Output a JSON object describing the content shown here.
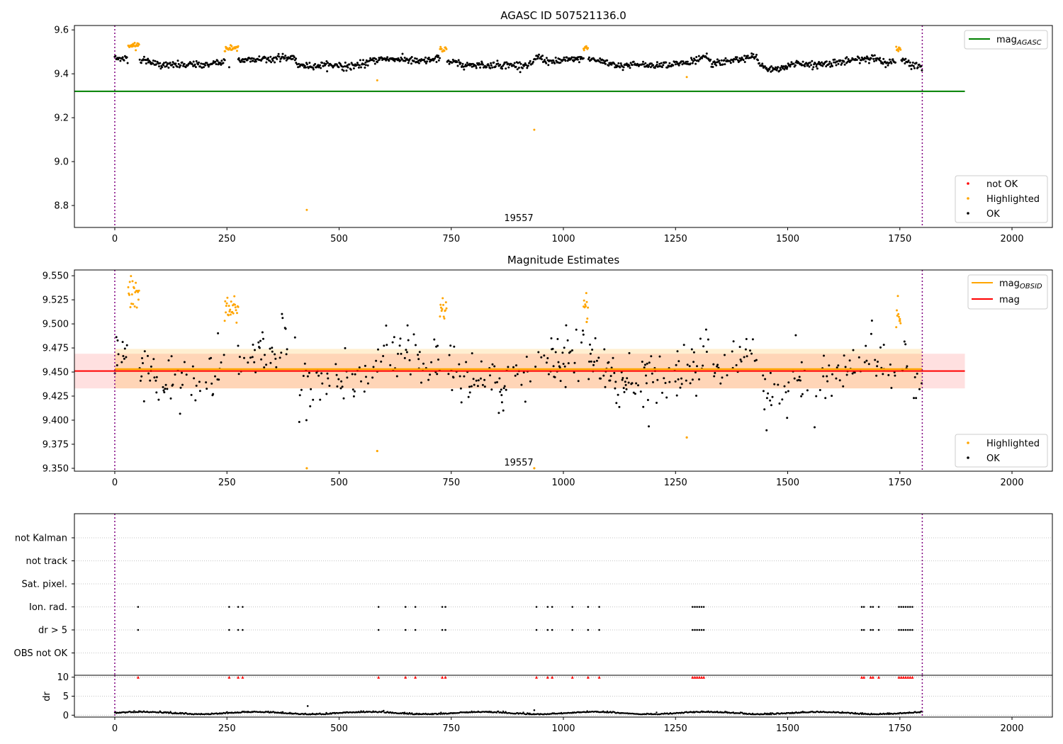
{
  "chart_data": [
    {
      "type": "scatter",
      "title": "AGASC ID 507521136.0",
      "xlabel": "",
      "ylabel": "",
      "xlim": [
        -90,
        2090
      ],
      "ylim": [
        8.7,
        9.62
      ],
      "x_ticks": [
        "0",
        "250",
        "500",
        "750",
        "1000",
        "1250",
        "1500",
        "1750",
        "2000"
      ],
      "y_ticks": [
        "8.8",
        "9.0",
        "9.2",
        "9.4",
        "9.6"
      ],
      "obsid_label": "19557",
      "obsid_boundaries": [
        0,
        1800
      ],
      "mag_agasc": 9.32,
      "legend_lines": [
        {
          "label": "mag",
          "sub": "AGASC",
          "color": "#008000"
        }
      ],
      "legend_points": [
        {
          "label": "not OK",
          "color": "#ff0000"
        },
        {
          "label": "Highlighted",
          "color": "#ffa500"
        },
        {
          "label": "OK",
          "color": "#000000"
        }
      ],
      "highlighted_outliers": [
        [
          585,
          9.37
        ],
        [
          935,
          9.145
        ],
        [
          428,
          8.78
        ],
        [
          1275,
          9.385
        ],
        [
          255,
          9.43
        ]
      ],
      "series": [
        {
          "name": "OK",
          "color": "#000000",
          "trend": [
            [
              0,
              9.47
            ],
            [
              50,
              9.47
            ],
            [
              100,
              9.44
            ],
            [
              200,
              9.44
            ],
            [
              250,
              9.46
            ],
            [
              300,
              9.465
            ],
            [
              400,
              9.475
            ],
            [
              410,
              9.435
            ],
            [
              500,
              9.44
            ],
            [
              520,
              9.43
            ],
            [
              600,
              9.47
            ],
            [
              640,
              9.465
            ],
            [
              680,
              9.455
            ],
            [
              730,
              9.47
            ],
            [
              770,
              9.44
            ],
            [
              860,
              9.44
            ],
            [
              930,
              9.44
            ],
            [
              940,
              9.48
            ],
            [
              970,
              9.455
            ],
            [
              1050,
              9.47
            ],
            [
              1080,
              9.46
            ],
            [
              1120,
              9.44
            ],
            [
              1200,
              9.44
            ],
            [
              1280,
              9.45
            ],
            [
              1320,
              9.48
            ],
            [
              1330,
              9.445
            ],
            [
              1400,
              9.47
            ],
            [
              1430,
              9.48
            ],
            [
              1440,
              9.43
            ],
            [
              1480,
              9.415
            ],
            [
              1520,
              9.45
            ],
            [
              1560,
              9.44
            ],
            [
              1640,
              9.46
            ],
            [
              1680,
              9.475
            ],
            [
              1720,
              9.45
            ],
            [
              1760,
              9.46
            ],
            [
              1790,
              9.43
            ]
          ],
          "spread": 0.012
        },
        {
          "name": "Highlighted",
          "color": "#ffa500",
          "clusters": [
            [
              30,
              55,
              9.53
            ],
            [
              245,
              275,
              9.515
            ],
            [
              725,
              740,
              9.515
            ],
            [
              1045,
              1055,
              9.52
            ],
            [
              1742,
              1752,
              9.51
            ]
          ],
          "spread": 0.008
        }
      ]
    },
    {
      "type": "scatter",
      "title": "Magnitude Estimates",
      "xlabel": "",
      "ylabel": "",
      "xlim": [
        -90,
        2090
      ],
      "ylim": [
        9.347,
        9.556
      ],
      "x_ticks": [
        "0",
        "250",
        "500",
        "750",
        "1000",
        "1250",
        "1500",
        "1750",
        "2000"
      ],
      "y_ticks": [
        "9.350",
        "9.375",
        "9.400",
        "9.425",
        "9.450",
        "9.475",
        "9.500",
        "9.525",
        "9.550"
      ],
      "obsid_label": "19557",
      "mag_obsid": 9.453,
      "mag_obsid_band": [
        9.433,
        9.474
      ],
      "mag": 9.451,
      "mag_band": [
        9.433,
        9.469
      ],
      "legend_lines": [
        {
          "label": "mag",
          "sub": "OBSID",
          "color": "#ffa500"
        },
        {
          "label": "mag",
          "sub": "",
          "color": "#ff0000"
        }
      ],
      "legend_points": [
        {
          "label": "Highlighted",
          "color": "#ffa500"
        },
        {
          "label": "OK",
          "color": "#000000"
        }
      ],
      "highlighted_outliers": [
        [
          585,
          9.368
        ],
        [
          1275,
          9.382
        ],
        [
          428,
          9.35
        ],
        [
          935,
          9.35
        ],
        [
          1052,
          9.502
        ],
        [
          1750,
          9.505
        ]
      ],
      "series": [
        {
          "name": "OK",
          "color": "#000000",
          "spread": 0.014
        },
        {
          "name": "Highlighted",
          "color": "#ffa500",
          "spread": 0.009
        }
      ]
    },
    {
      "type": "scatter",
      "title": "",
      "xlabel": "",
      "ylabel": "",
      "xlim": [
        -90,
        2090
      ],
      "categories": [
        "not Kalman",
        "not track",
        "Sat. pixel.",
        "Ion. rad.",
        "dr > 5",
        "OBS not OK"
      ],
      "flag_times": [
        52,
        255,
        275,
        285,
        588,
        648,
        670,
        730,
        737,
        940,
        965,
        975,
        1020,
        1055,
        1080,
        1288,
        1293,
        1298,
        1303,
        1308,
        1313,
        1665,
        1670,
        1685,
        1690,
        1703,
        1748,
        1753,
        1758,
        1763,
        1768,
        1773,
        1778
      ]
    },
    {
      "type": "scatter",
      "title": "",
      "xlabel": "",
      "ylabel": "dr",
      "xlim": [
        -90,
        2090
      ],
      "ylim": [
        -0.5,
        10.5
      ],
      "x_ticks": [
        "0",
        "250",
        "500",
        "750",
        "1000",
        "1250",
        "1500",
        "1750",
        "2000"
      ],
      "y_ticks": [
        "0",
        "5",
        "10"
      ],
      "capped_value": 10,
      "outliers": [
        [
          430,
          2.4
        ],
        [
          935,
          1.3
        ]
      ]
    }
  ]
}
